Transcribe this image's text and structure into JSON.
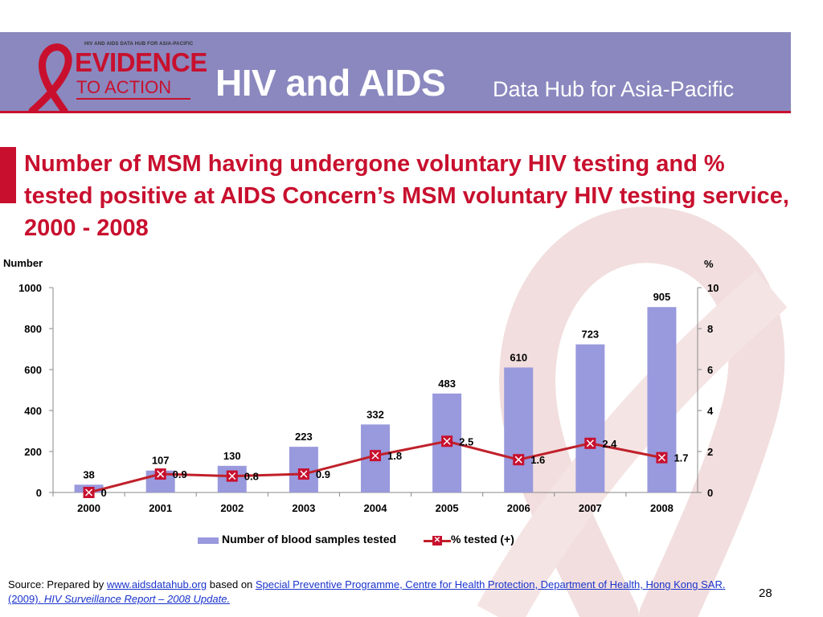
{
  "header": {
    "logo_small_text": "HIV AND AIDS DATA HUB FOR ASIA-PACIFIC",
    "logo_line1": "EVIDENCE",
    "logo_line2": "TO ACTION",
    "title": "HIV and AIDS",
    "subtitle": "Data Hub for Asia-Pacific"
  },
  "colors": {
    "header_bg": "#8a88be",
    "accent_red": "#c8102e",
    "bar_fill": "#9999dd",
    "line_color": "#c0202a"
  },
  "chart_data": {
    "type": "bar",
    "title": "Number of MSM having undergone voluntary HIV testing and % tested positive at AIDS Concern’s MSM voluntary HIV testing service, 2000 - 2008",
    "categories": [
      "2000",
      "2001",
      "2002",
      "2003",
      "2004",
      "2005",
      "2006",
      "2007",
      "2008"
    ],
    "series": [
      {
        "name": "Number of blood samples tested",
        "type": "bar",
        "axis": "left",
        "values": [
          38,
          107,
          130,
          223,
          332,
          483,
          610,
          723,
          905
        ],
        "labels": [
          "38",
          "107",
          "130",
          "223",
          "332",
          "483",
          "610",
          "723",
          "905"
        ]
      },
      {
        "name": "% tested (+)",
        "type": "line",
        "axis": "right",
        "values": [
          0,
          0.9,
          0.8,
          0.9,
          1.8,
          2.5,
          1.6,
          2.4,
          1.7
        ],
        "labels": [
          "0",
          "0.9",
          "0.8",
          "0.9",
          "1.8",
          "2.5",
          "1.6",
          "2.4",
          "1.7"
        ]
      }
    ],
    "y_left": {
      "label": "Number",
      "min": 0,
      "max": 1000,
      "ticks": [
        "0",
        "200",
        "400",
        "600",
        "800",
        "1000"
      ]
    },
    "y_right": {
      "label": "%",
      "min": 0,
      "max": 10,
      "ticks": [
        "0",
        "2",
        "4",
        "6",
        "8",
        "10"
      ]
    },
    "xlabel": "",
    "grid": false,
    "legend_position": "bottom"
  },
  "source": {
    "prefix": "Source: Prepared by ",
    "link1": "www.aidsdatahub.org",
    "middle": "  based on ",
    "link2": "Special Preventive Programme, Centre for Health Protection, Department of Health, Hong Kong SAR. (2009). ",
    "link3_italic": "HIV Surveillance Report – 2008 Update."
  },
  "page_number": "28"
}
